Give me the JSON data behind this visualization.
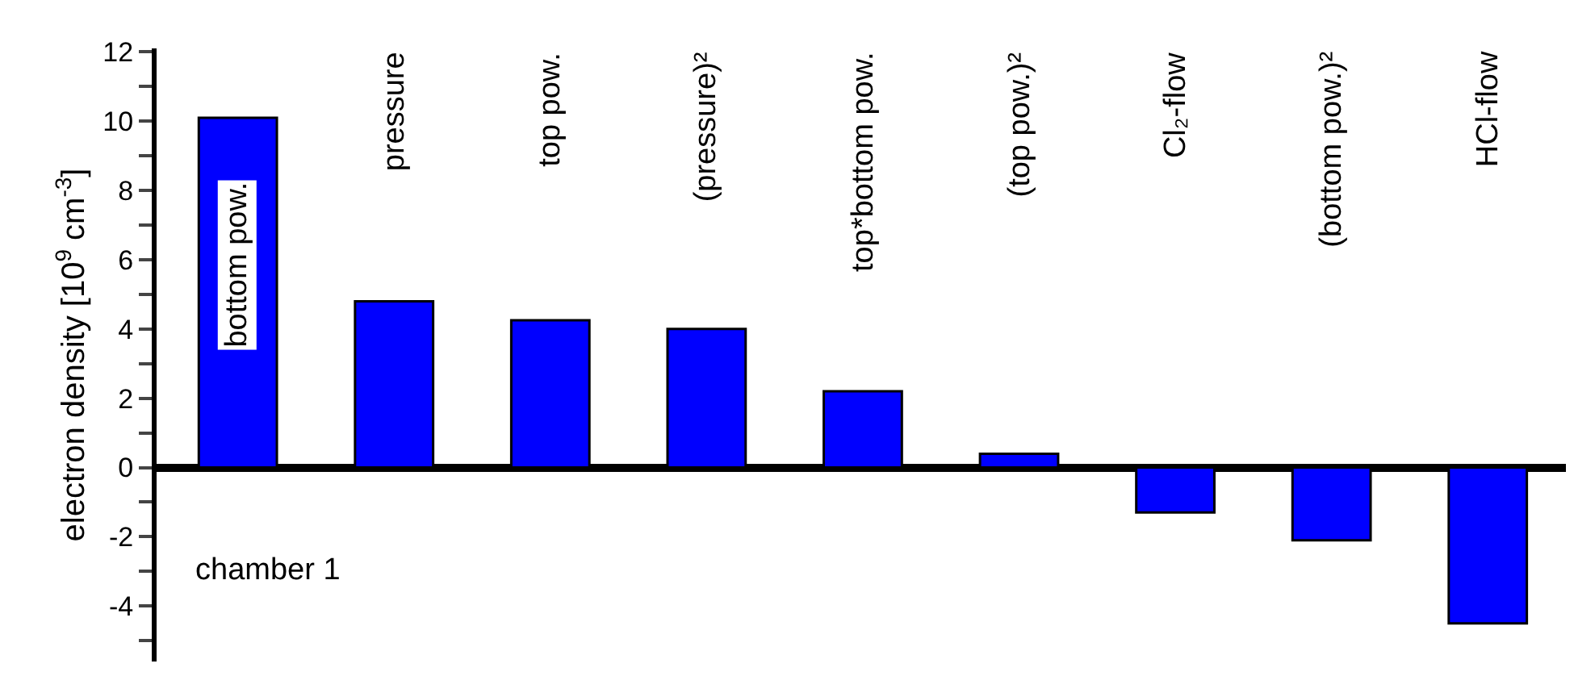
{
  "chart_data": {
    "type": "bar",
    "categories": [
      "bottom pow.",
      "pressure",
      "top pow.",
      "(pressure)²",
      "top*bottom pow.",
      "(top pow.)²",
      "Cl₂-flow",
      "(bottom pow.)²",
      "HCl-flow"
    ],
    "values": [
      10.1,
      4.8,
      4.25,
      4.0,
      2.2,
      0.4,
      -1.3,
      -2.1,
      -4.5
    ],
    "color": "#0000ff",
    "ylabel": "electron density [10$^{9}$ cm$^{-3}$]",
    "ylim": [
      -5.6,
      12.1
    ],
    "yticks": [
      {
        "value": -5,
        "label": null
      },
      -4,
      {
        "value": -3,
        "label": null
      },
      -2,
      {
        "value": -1,
        "label": null
      },
      0,
      {
        "value": 1,
        "label": null
      },
      2,
      {
        "value": 3,
        "label": null
      },
      4,
      {
        "value": 5,
        "label": null
      },
      6,
      {
        "value": 7,
        "label": null
      },
      8,
      {
        "value": 9,
        "label": null
      },
      10,
      {
        "value": 11,
        "label": null
      },
      12
    ],
    "annotations": [
      "chamber 1"
    ]
  }
}
